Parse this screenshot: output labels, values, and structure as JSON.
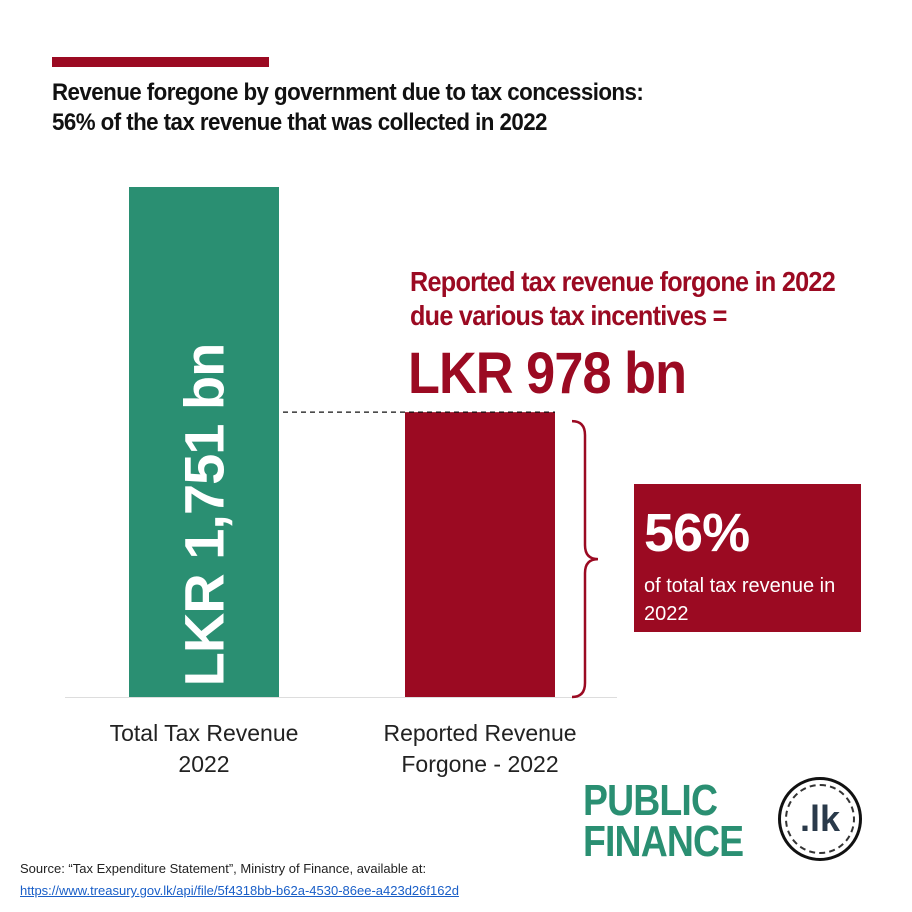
{
  "title": {
    "line1": "Revenue foregone by government due to tax concessions:",
    "line2": "56% of the tax revenue that was collected in 2022"
  },
  "chart_data": {
    "type": "bar",
    "categories": [
      "Total Tax Revenue 2022",
      "Reported Revenue Forgone - 2022"
    ],
    "category_lines": [
      [
        "Total Tax Revenue",
        "2022"
      ],
      [
        "Reported Revenue",
        "Forgone - 2022"
      ]
    ],
    "values": [
      1751,
      978
    ],
    "units": "LKR bn",
    "bar_labels": [
      "LKR 1,751 bn",
      ""
    ],
    "colors": [
      "#2a8f72",
      "#9b0a22"
    ],
    "ylim": [
      0,
      1751
    ]
  },
  "annotation": {
    "line1": "Reported tax revenue forgone in 2022",
    "line2": "due various tax incentives =",
    "value": "LKR 978 bn"
  },
  "share": {
    "percent": "56%",
    "text": "of total tax revenue in 2022"
  },
  "logo": {
    "line1": "PUBLIC",
    "line2": "FINANCE",
    "seal": ".lk"
  },
  "source": {
    "text": "Source: “Tax Expenditure Statement”, Ministry of Finance, available at:",
    "url": "https://www.treasury.gov.lk/api/file/5f4318bb-b62a-4530-86ee-a423d26f162d"
  }
}
